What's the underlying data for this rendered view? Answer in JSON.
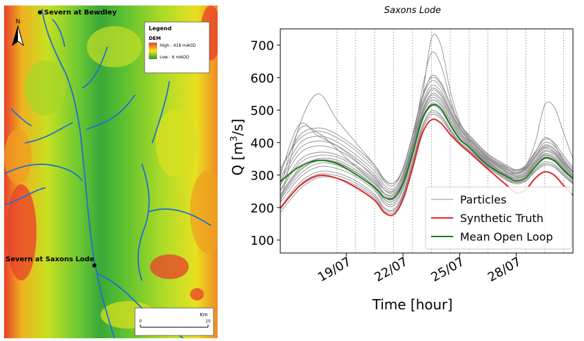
{
  "map": {
    "station_top": "Severn at Bewdley",
    "station_bottom": "Severn at Saxons Lode",
    "north_label": "N",
    "legend": {
      "title": "Legend",
      "subtitle": "DEM",
      "high_label": "High : 418 mAOD",
      "low_label": "Low : 6  mAOD",
      "high_color": "#e8402a",
      "mid_color": "#f2e61c",
      "low_color": "#2d9a2b"
    },
    "scalebar": {
      "unit": "Km",
      "start": "0",
      "end": "10"
    },
    "river_color": "#1f6fd1"
  },
  "chart_data": {
    "type": "line",
    "title": "Saxons Lode",
    "xlabel": "Time [hour]",
    "ylabel_main": "Q [m",
    "ylabel_sup": "3",
    "ylabel_end": "/s]",
    "xlim": [
      15.5,
      31
    ],
    "ylim": [
      60,
      750
    ],
    "x_ticks": [
      {
        "value": 19,
        "label": "19/07"
      },
      {
        "value": 22,
        "label": "22/07"
      },
      {
        "value": 25,
        "label": "25/07"
      },
      {
        "value": 28,
        "label": "28/07"
      }
    ],
    "y_ticks": [
      100,
      200,
      300,
      400,
      500,
      600,
      700
    ],
    "assimilation_lines": [
      18.5,
      19.5,
      20.5,
      21.5,
      22.5,
      23.5,
      24.5,
      25.5,
      26.5,
      27.5,
      28.5,
      29.5,
      30.5
    ],
    "legend_entries": [
      {
        "label": "Particles",
        "color": "#8c8c8c"
      },
      {
        "label": "Synthetic Truth",
        "color": "#e0262a"
      },
      {
        "label": "Mean Open Loop",
        "color": "#1d7a1d"
      }
    ],
    "x": [
      15.5,
      16.5,
      17.5,
      18.5,
      19.5,
      20.5,
      21.0,
      21.5,
      22.0,
      22.5,
      23.0,
      23.5,
      24.0,
      24.5,
      25.0,
      25.5,
      26.5,
      27.5,
      28.0,
      28.5,
      29.0,
      29.5,
      30.0,
      30.5,
      31.0
    ],
    "series": [
      {
        "name": "Synthetic Truth",
        "values": [
          198,
          265,
          298,
          290,
          262,
          222,
          185,
          178,
          225,
          320,
          425,
          470,
          460,
          425,
          395,
          370,
          318,
          268,
          245,
          255,
          290,
          310,
          300,
          268,
          238
        ]
      },
      {
        "name": "Mean Open Loop",
        "values": [
          280,
          325,
          345,
          335,
          302,
          262,
          232,
          230,
          275,
          365,
          470,
          515,
          505,
          455,
          410,
          385,
          330,
          295,
          282,
          292,
          325,
          352,
          345,
          315,
          290
        ]
      }
    ],
    "particles": [
      [
        265,
        440,
        430,
        380,
        325,
        275,
        245,
        240,
        285,
        390,
        530,
        720,
        700,
        560,
        465,
        415,
        355,
        325,
        315,
        330,
        400,
        515,
        510,
        430,
        350
      ],
      [
        300,
        455,
        420,
        390,
        345,
        290,
        255,
        250,
        300,
        400,
        560,
        675,
        640,
        535,
        450,
        405,
        345,
        310,
        305,
        325,
        370,
        415,
        395,
        345,
        310
      ],
      [
        210,
        450,
        550,
        470,
        400,
        330,
        285,
        275,
        315,
        420,
        530,
        605,
        585,
        520,
        460,
        415,
        350,
        315,
        305,
        320,
        360,
        385,
        370,
        335,
        300
      ],
      [
        230,
        310,
        345,
        340,
        310,
        265,
        225,
        220,
        270,
        370,
        480,
        530,
        515,
        465,
        420,
        392,
        340,
        300,
        290,
        300,
        335,
        362,
        352,
        320,
        290
      ],
      [
        250,
        335,
        360,
        355,
        325,
        280,
        240,
        232,
        280,
        380,
        490,
        545,
        530,
        480,
        430,
        400,
        345,
        308,
        296,
        308,
        342,
        372,
        362,
        328,
        298
      ],
      [
        270,
        365,
        390,
        378,
        342,
        295,
        255,
        245,
        292,
        392,
        505,
        560,
        545,
        492,
        440,
        408,
        352,
        316,
        302,
        315,
        352,
        382,
        372,
        338,
        306
      ],
      [
        290,
        395,
        420,
        402,
        362,
        312,
        270,
        258,
        305,
        405,
        518,
        575,
        558,
        502,
        448,
        415,
        358,
        322,
        308,
        322,
        360,
        392,
        382,
        346,
        312
      ],
      [
        215,
        290,
        325,
        320,
        295,
        252,
        212,
        205,
        255,
        355,
        462,
        512,
        498,
        452,
        410,
        385,
        334,
        295,
        284,
        293,
        326,
        350,
        342,
        312,
        283
      ],
      [
        200,
        275,
        310,
        306,
        282,
        240,
        200,
        194,
        243,
        342,
        448,
        498,
        485,
        442,
        402,
        378,
        328,
        290,
        278,
        287,
        318,
        340,
        333,
        305,
        278
      ],
      [
        185,
        255,
        292,
        290,
        268,
        228,
        190,
        184,
        233,
        330,
        435,
        485,
        474,
        433,
        395,
        372,
        322,
        284,
        273,
        281,
        310,
        330,
        324,
        298,
        272
      ],
      [
        240,
        320,
        350,
        346,
        316,
        272,
        232,
        226,
        276,
        376,
        486,
        538,
        522,
        472,
        426,
        396,
        342,
        304,
        293,
        304,
        338,
        366,
        356,
        324,
        294
      ],
      [
        320,
        410,
        435,
        415,
        375,
        322,
        280,
        268,
        316,
        418,
        532,
        590,
        570,
        512,
        455,
        420,
        362,
        326,
        312,
        326,
        366,
        400,
        390,
        352,
        318
      ],
      [
        255,
        345,
        370,
        362,
        330,
        285,
        245,
        237,
        284,
        384,
        495,
        550,
        536,
        486,
        434,
        403,
        348,
        311,
        298,
        310,
        346,
        376,
        366,
        332,
        300
      ],
      [
        225,
        300,
        336,
        330,
        302,
        258,
        218,
        212,
        262,
        362,
        470,
        520,
        506,
        458,
        415,
        389,
        337,
        298,
        287,
        297,
        330,
        355,
        347,
        316,
        286
      ],
      [
        280,
        380,
        405,
        390,
        352,
        302,
        262,
        252,
        298,
        398,
        510,
        566,
        550,
        496,
        444,
        411,
        355,
        319,
        305,
        318,
        356,
        388,
        378,
        342,
        309
      ],
      [
        195,
        268,
        302,
        298,
        275,
        234,
        196,
        190,
        238,
        336,
        442,
        492,
        480,
        438,
        399,
        375,
        325,
        287,
        276,
        284,
        314,
        335,
        328,
        301,
        275
      ],
      [
        310,
        420,
        445,
        425,
        384,
        330,
        288,
        275,
        322,
        424,
        540,
        600,
        580,
        520,
        460,
        424,
        365,
        330,
        316,
        330,
        372,
        410,
        400,
        360,
        324
      ],
      [
        235,
        315,
        343,
        338,
        308,
        265,
        226,
        220,
        270,
        370,
        478,
        530,
        514,
        466,
        421,
        393,
        339,
        301,
        290,
        301,
        334,
        360,
        351,
        320,
        290
      ]
    ]
  }
}
